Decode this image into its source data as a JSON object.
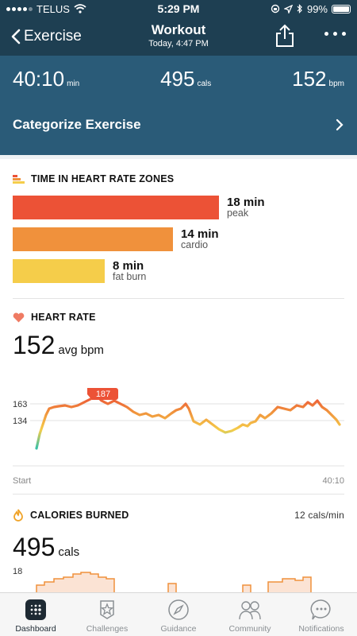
{
  "status_bar": {
    "carrier": "TELUS",
    "time": "5:29 PM",
    "battery": "99%"
  },
  "nav": {
    "back_label": "Exercise",
    "title": "Workout",
    "subtitle": "Today, 4:47 PM"
  },
  "summary": {
    "duration": {
      "value": "40:10",
      "unit": "min"
    },
    "calories": {
      "value": "495",
      "unit": "cals"
    },
    "heart_rate": {
      "value": "152",
      "unit": "bpm"
    }
  },
  "categorize": {
    "label": "Categorize Exercise"
  },
  "zones": {
    "title": "TIME IN HEART RATE ZONES",
    "items": [
      {
        "minutes": "18 min",
        "name": "peak",
        "value": 18,
        "color": "#ec5236"
      },
      {
        "minutes": "14 min",
        "name": "cardio",
        "value": 14,
        "color": "#f0913c"
      },
      {
        "minutes": "8 min",
        "name": "fat burn",
        "value": 8,
        "color": "#f5cd4a"
      }
    ]
  },
  "heart_rate": {
    "title": "HEART RATE",
    "avg_value": "152",
    "avg_unit": "avg bpm",
    "chart_data": {
      "type": "line",
      "y_ticks": [
        "163",
        "134"
      ],
      "peak_label": "187",
      "x_start": "Start",
      "x_end": "40:10"
    }
  },
  "calories": {
    "title": "CALORIES BURNED",
    "rate": "12 cals/min",
    "total_value": "495",
    "total_unit": "cals",
    "y_tick": "18"
  },
  "tabs": [
    {
      "label": "Dashboard",
      "icon": "dashboard-icon",
      "active": true
    },
    {
      "label": "Challenges",
      "icon": "star-icon",
      "active": false
    },
    {
      "label": "Guidance",
      "icon": "compass-icon",
      "active": false
    },
    {
      "label": "Community",
      "icon": "people-icon",
      "active": false
    },
    {
      "label": "Notifications",
      "icon": "chat-icon",
      "active": false
    }
  ]
}
